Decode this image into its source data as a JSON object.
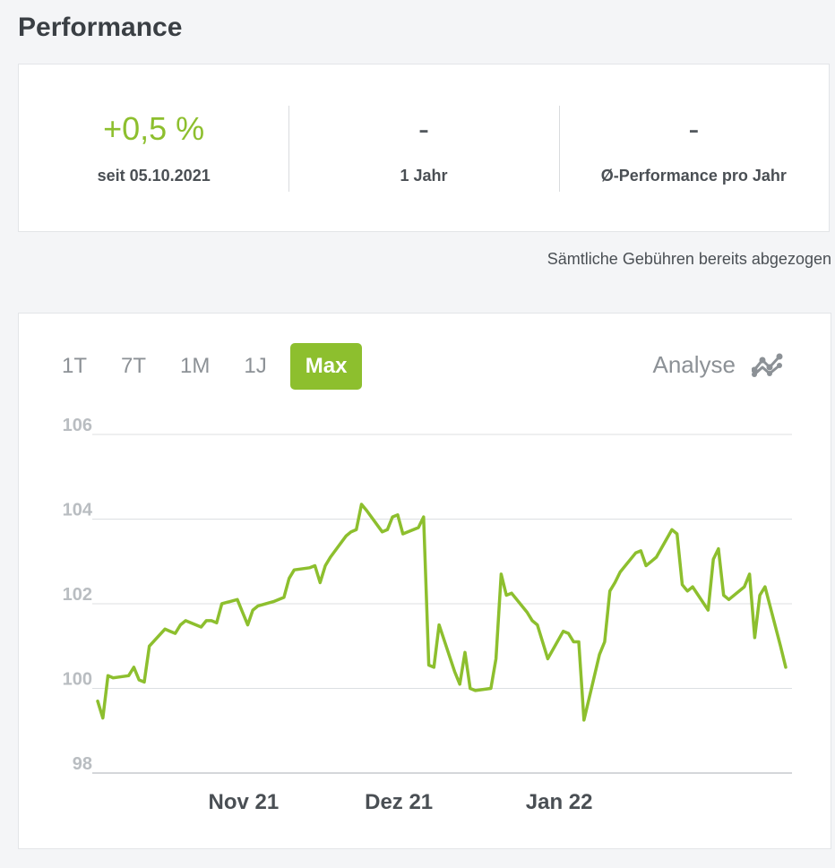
{
  "page": {
    "title": "Performance"
  },
  "stats": [
    {
      "value": "+0,5 %",
      "label": "seit 05.10.2021",
      "positive": true
    },
    {
      "value": "-",
      "label": "1 Jahr",
      "positive": false
    },
    {
      "value": "-",
      "label": "Ø-Performance pro Jahr",
      "positive": false
    }
  ],
  "fees_note": "Sämtliche Gebühren bereits abgezogen",
  "range_tabs": [
    "1T",
    "7T",
    "1M",
    "1J",
    "Max"
  ],
  "active_tab": "Max",
  "analyse": {
    "label": "Analyse",
    "icon": "analyse-chart-icon"
  },
  "colors": {
    "accent": "#8dbf2e",
    "grid": "#dcdfe2"
  },
  "chart_data": {
    "type": "line",
    "title": "",
    "xlabel": "",
    "ylabel": "",
    "ylim": [
      98,
      106
    ],
    "yticks": [
      "106",
      "104",
      "102",
      "100",
      "98"
    ],
    "xticks": [
      {
        "label": "Nov 21",
        "date": "2021-11-01"
      },
      {
        "label": "Dez 21",
        "date": "2021-12-01"
      },
      {
        "label": "Jan 22",
        "date": "2022-01-01"
      }
    ],
    "grid": true,
    "series": [
      {
        "color": "#8dbf2e",
        "points": [
          [
            "2021-10-05",
            99.7
          ],
          [
            "2021-10-06",
            99.3
          ],
          [
            "2021-10-07",
            100.3
          ],
          [
            "2021-10-08",
            100.25
          ],
          [
            "2021-10-11",
            100.3
          ],
          [
            "2021-10-12",
            100.5
          ],
          [
            "2021-10-13",
            100.2
          ],
          [
            "2021-10-14",
            100.15
          ],
          [
            "2021-10-15",
            101.0
          ],
          [
            "2021-10-18",
            101.4
          ],
          [
            "2021-10-19",
            101.35
          ],
          [
            "2021-10-20",
            101.3
          ],
          [
            "2021-10-21",
            101.5
          ],
          [
            "2021-10-22",
            101.6
          ],
          [
            "2021-10-25",
            101.45
          ],
          [
            "2021-10-26",
            101.6
          ],
          [
            "2021-10-27",
            101.6
          ],
          [
            "2021-10-28",
            101.55
          ],
          [
            "2021-10-29",
            102.0
          ],
          [
            "2021-11-01",
            102.1
          ],
          [
            "2021-11-02",
            101.8
          ],
          [
            "2021-11-03",
            101.5
          ],
          [
            "2021-11-04",
            101.85
          ],
          [
            "2021-11-05",
            101.95
          ],
          [
            "2021-11-08",
            102.05
          ],
          [
            "2021-11-09",
            102.1
          ],
          [
            "2021-11-10",
            102.15
          ],
          [
            "2021-11-11",
            102.6
          ],
          [
            "2021-11-12",
            102.8
          ],
          [
            "2021-11-15",
            102.85
          ],
          [
            "2021-11-16",
            102.9
          ],
          [
            "2021-11-17",
            102.5
          ],
          [
            "2021-11-18",
            102.9
          ],
          [
            "2021-11-19",
            103.1
          ],
          [
            "2021-11-22",
            103.6
          ],
          [
            "2021-11-23",
            103.7
          ],
          [
            "2021-11-24",
            103.75
          ],
          [
            "2021-11-25",
            104.35
          ],
          [
            "2021-11-26",
            104.2
          ],
          [
            "2021-11-29",
            103.7
          ],
          [
            "2021-11-30",
            103.75
          ],
          [
            "2021-12-01",
            104.05
          ],
          [
            "2021-12-02",
            104.1
          ],
          [
            "2021-12-03",
            103.65
          ],
          [
            "2021-12-06",
            103.8
          ],
          [
            "2021-12-07",
            104.05
          ],
          [
            "2021-12-08",
            100.55
          ],
          [
            "2021-12-09",
            100.5
          ],
          [
            "2021-12-10",
            101.5
          ],
          [
            "2021-12-13",
            100.4
          ],
          [
            "2021-12-14",
            100.1
          ],
          [
            "2021-12-15",
            100.85
          ],
          [
            "2021-12-16",
            100.0
          ],
          [
            "2021-12-17",
            99.95
          ],
          [
            "2021-12-20",
            100.0
          ],
          [
            "2021-12-21",
            100.7
          ],
          [
            "2021-12-22",
            102.7
          ],
          [
            "2021-12-23",
            102.2
          ],
          [
            "2021-12-24",
            102.25
          ],
          [
            "2021-12-27",
            101.8
          ],
          [
            "2021-12-28",
            101.6
          ],
          [
            "2021-12-29",
            101.5
          ],
          [
            "2021-12-30",
            101.1
          ],
          [
            "2021-12-31",
            100.7
          ],
          [
            "2022-01-03",
            101.35
          ],
          [
            "2022-01-04",
            101.3
          ],
          [
            "2022-01-05",
            101.1
          ],
          [
            "2022-01-06",
            101.1
          ],
          [
            "2022-01-07",
            99.25
          ],
          [
            "2022-01-10",
            100.8
          ],
          [
            "2022-01-11",
            101.1
          ],
          [
            "2022-01-12",
            102.3
          ],
          [
            "2022-01-13",
            102.5
          ],
          [
            "2022-01-14",
            102.75
          ],
          [
            "2022-01-17",
            103.2
          ],
          [
            "2022-01-18",
            103.25
          ],
          [
            "2022-01-19",
            102.9
          ],
          [
            "2022-01-20",
            103.0
          ],
          [
            "2022-01-21",
            103.1
          ],
          [
            "2022-01-24",
            103.75
          ],
          [
            "2022-01-25",
            103.65
          ],
          [
            "2022-01-26",
            102.45
          ],
          [
            "2022-01-27",
            102.3
          ],
          [
            "2022-01-28",
            102.4
          ],
          [
            "2022-01-31",
            101.85
          ],
          [
            "2022-02-01",
            103.05
          ],
          [
            "2022-02-02",
            103.3
          ],
          [
            "2022-02-03",
            102.2
          ],
          [
            "2022-02-04",
            102.1
          ],
          [
            "2022-02-07",
            102.4
          ],
          [
            "2022-02-08",
            102.7
          ],
          [
            "2022-02-09",
            101.2
          ],
          [
            "2022-02-10",
            102.2
          ],
          [
            "2022-02-11",
            102.4
          ],
          [
            "2022-02-14",
            101.0
          ],
          [
            "2022-02-15",
            100.5
          ]
        ]
      }
    ]
  }
}
